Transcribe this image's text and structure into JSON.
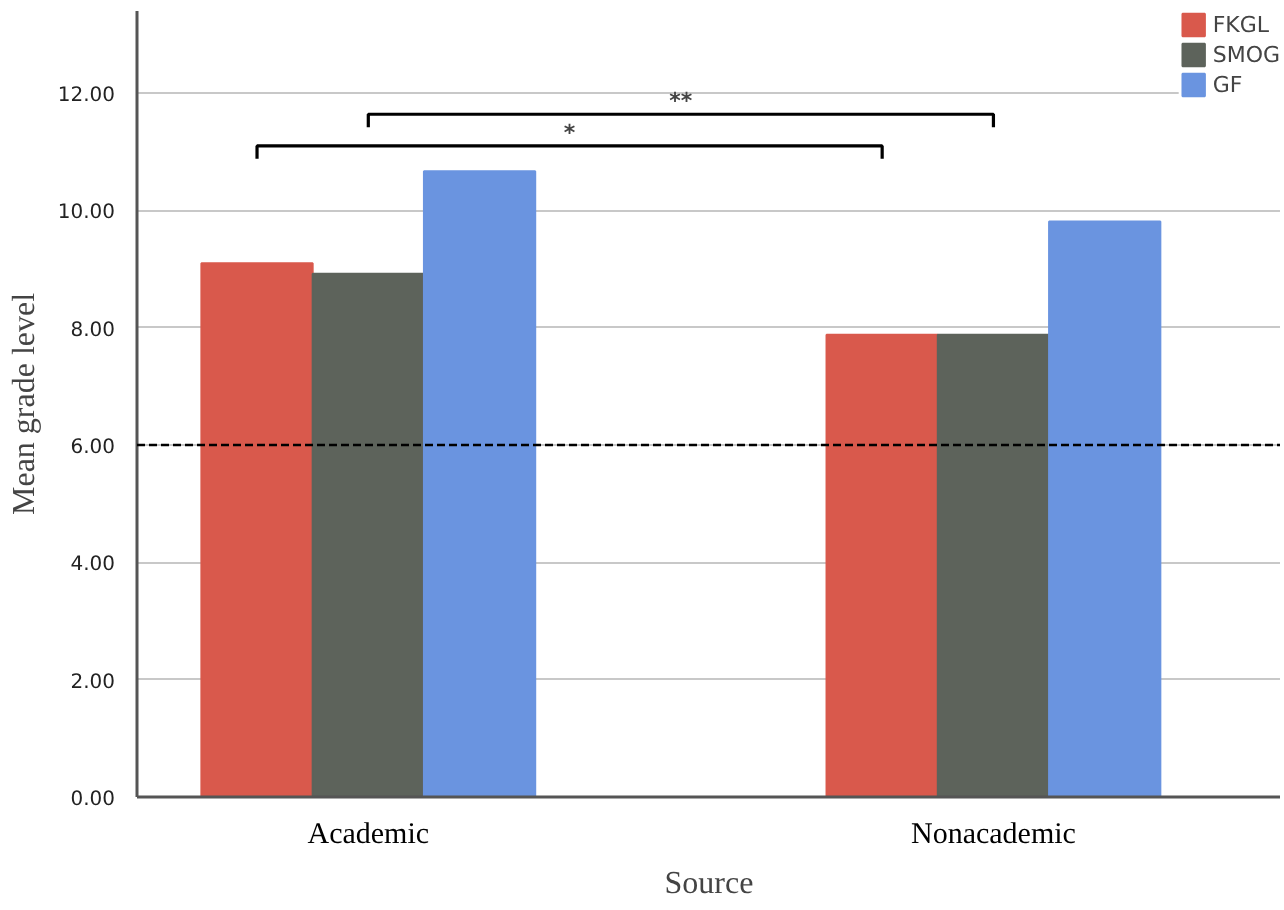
{
  "chart_data": {
    "type": "bar",
    "xlabel": "Source",
    "ylabel": "Mean grade level",
    "categories": [
      "Academic",
      "Nonacademic"
    ],
    "series": [
      {
        "name": "FKGL",
        "color": "#d9594c",
        "values": [
          9.1,
          7.88
        ]
      },
      {
        "name": "SMOG",
        "color": "#5d635b",
        "values": [
          8.92,
          7.88
        ]
      },
      {
        "name": "GF",
        "color": "#6a94e0",
        "values": [
          10.67,
          9.81
        ]
      }
    ],
    "ylim": [
      0,
      13.4
    ],
    "yticks": [
      {
        "value": 0,
        "label": "0.00"
      },
      {
        "value": 2,
        "label": "2.00"
      },
      {
        "value": 4,
        "label": "4.00"
      },
      {
        "value": 6,
        "label": "6.00"
      },
      {
        "value": 8,
        "label": "8.00"
      },
      {
        "value": 10,
        "label": "10.00"
      },
      {
        "value": 12,
        "label": "12.00"
      }
    ],
    "grid": "y",
    "legend": "top right",
    "ref_lines": [
      {
        "axis": "y",
        "value": 6,
        "color": "#000000",
        "line_style": "dashed"
      }
    ],
    "annotations": [
      "*",
      "**"
    ]
  }
}
